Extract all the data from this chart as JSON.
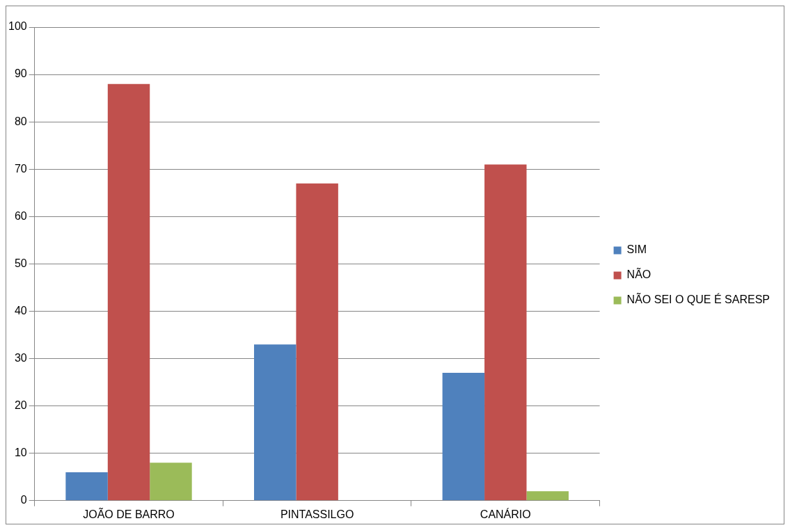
{
  "chart_data": {
    "type": "bar",
    "categories": [
      "JOÃO DE BARRO",
      "PINTASSILGO",
      "CANÁRIO"
    ],
    "series": [
      {
        "name": "SIM",
        "color": "#4f81bd",
        "values": [
          6,
          33,
          27
        ]
      },
      {
        "name": "NÃO",
        "color": "#c0504d",
        "values": [
          88,
          67,
          71
        ]
      },
      {
        "name": "NÃO SEI O QUE É SARESP",
        "color": "#9bbb59",
        "values": [
          8,
          0,
          2
        ]
      }
    ],
    "ylim": [
      0,
      100
    ],
    "yticks": [
      0,
      10,
      20,
      30,
      40,
      50,
      60,
      70,
      80,
      90,
      100
    ],
    "grid": "y",
    "legend": "right"
  }
}
